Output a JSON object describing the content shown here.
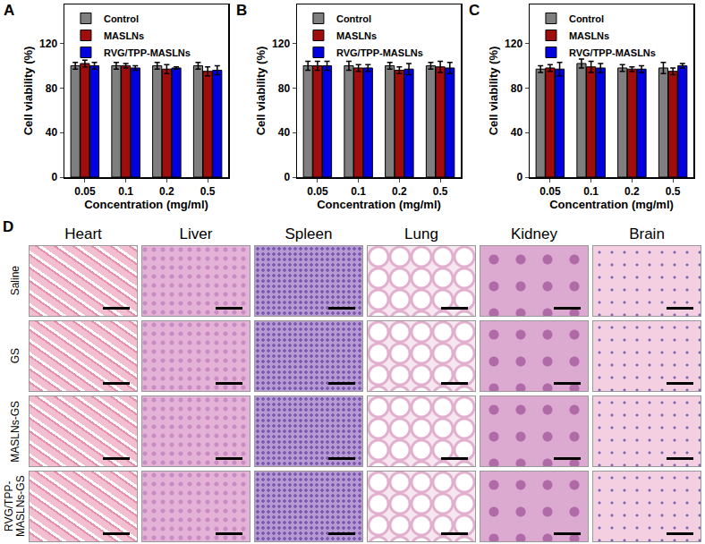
{
  "chart_data": [
    {
      "type": "bar",
      "title": "A",
      "categories": [
        "0.05",
        "0.1",
        "0.2",
        "0.5"
      ],
      "x_label": "Concentration (mg/ml)",
      "y_label": "Cell viability (%)",
      "ylim": [
        0,
        155
      ],
      "yticks": [
        0,
        40,
        80,
        120
      ],
      "grid": false,
      "legend": "upper left",
      "series": [
        {
          "name": "Control",
          "color": "#7f7f7f",
          "values": [
            100,
            100,
            100,
            100
          ],
          "errors": [
            3,
            3,
            3,
            3
          ]
        },
        {
          "name": "MASLNs",
          "color": "#a00d0d",
          "values": [
            102,
            100,
            97,
            95
          ],
          "errors": [
            3,
            2,
            4,
            4
          ]
        },
        {
          "name": "RVG/TPP-MASLNs",
          "color": "#0000e0",
          "values": [
            100,
            98,
            98,
            96
          ],
          "errors": [
            3,
            2,
            1,
            4
          ]
        }
      ]
    },
    {
      "type": "bar",
      "title": "B",
      "categories": [
        "0.05",
        "0.1",
        "0.2",
        "0.5"
      ],
      "x_label": "Concentration (mg/ml)",
      "y_label": "Cell viability (%)",
      "ylim": [
        0,
        155
      ],
      "yticks": [
        0,
        40,
        80,
        120
      ],
      "grid": false,
      "legend": "upper left",
      "series": [
        {
          "name": "Control",
          "color": "#7f7f7f",
          "values": [
            100,
            100,
            100,
            100
          ],
          "errors": [
            4,
            4,
            3,
            3
          ]
        },
        {
          "name": "MASLNs",
          "color": "#a00d0d",
          "values": [
            100,
            98,
            96,
            99
          ],
          "errors": [
            4,
            3,
            3,
            5
          ]
        },
        {
          "name": "RVG/TPP-MASLNs",
          "color": "#0000e0",
          "values": [
            100,
            98,
            97,
            98
          ],
          "errors": [
            4,
            3,
            5,
            5
          ]
        }
      ]
    },
    {
      "type": "bar",
      "title": "C",
      "categories": [
        "0.05",
        "0.1",
        "0.2",
        "0.5"
      ],
      "x_label": "Concentration (mg/ml)",
      "y_label": "Cell viability (%)",
      "ylim": [
        0,
        155
      ],
      "yticks": [
        0,
        40,
        80,
        120
      ],
      "grid": false,
      "legend": "upper left",
      "series": [
        {
          "name": "Control",
          "color": "#7f7f7f",
          "values": [
            97,
            102,
            98,
            98
          ],
          "errors": [
            3,
            4,
            3,
            5
          ]
        },
        {
          "name": "MASLNs",
          "color": "#a00d0d",
          "values": [
            98,
            99,
            97,
            95
          ],
          "errors": [
            3,
            5,
            2,
            3
          ]
        },
        {
          "name": "RVG/TPP-MASLNs",
          "color": "#0000e0",
          "values": [
            97,
            98,
            97,
            100
          ],
          "errors": [
            6,
            4,
            3,
            2
          ]
        }
      ]
    }
  ],
  "panel_d": {
    "label": "D",
    "columns": [
      "Heart",
      "Liver",
      "Spleen",
      "Lung",
      "Kidney",
      "Brain"
    ],
    "rows": [
      "Saline",
      "GS",
      "MASLNs-GS",
      "RVG/TPP-MASLNs-GS"
    ]
  }
}
